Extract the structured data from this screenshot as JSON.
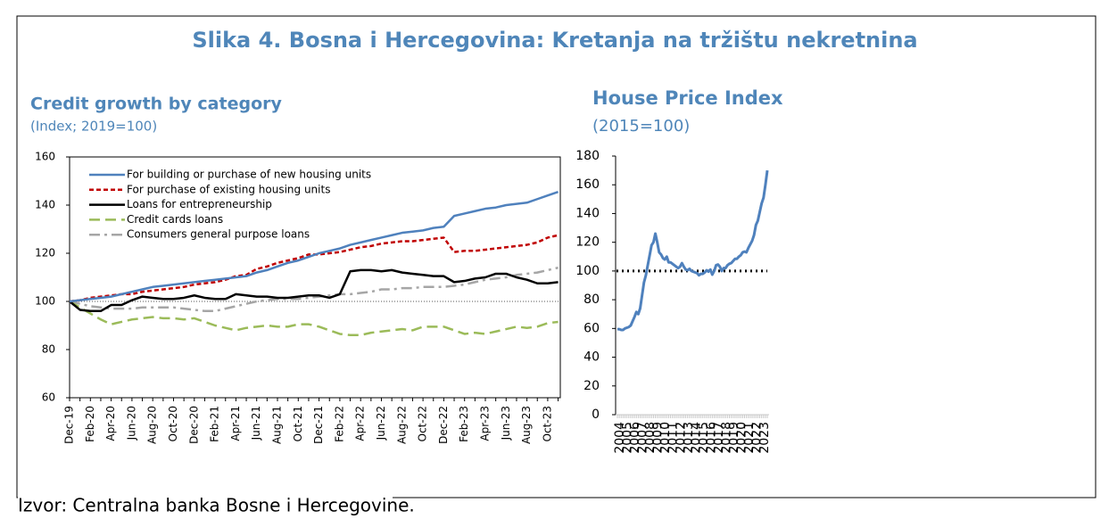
{
  "title": "Slika 4. Bosna i Hercegovina: Kretanja na tržištu nekretnina",
  "source": "Izvor: Centralna banka Bosne i Hercegovine.",
  "chart_data": [
    {
      "type": "line",
      "title": "Credit growth by category",
      "subtitle": "(Index; 2019=100)",
      "categories": [
        "Dec-19",
        null,
        "Feb-20",
        null,
        "Apr-20",
        null,
        "Jun-20",
        null,
        "Aug-20",
        null,
        "Oct-20",
        null,
        "Dec-20",
        null,
        "Feb-21",
        null,
        "Apr-21",
        null,
        "Jun-21",
        null,
        "Aug-21",
        null,
        "Oct-21",
        null,
        "Dec-21",
        null,
        "Feb-22",
        null,
        "Apr-22",
        null,
        "Jun-22",
        null,
        "Aug-22",
        null,
        "Oct-22",
        null,
        "Dec-22",
        null,
        "Feb-23",
        null,
        "Apr-23",
        null,
        "Jun-23",
        null,
        "Aug-23",
        null,
        "Oct-23",
        null
      ],
      "series": [
        {
          "name": "For building or purchase of new housing units",
          "color": "#4f81bd",
          "dash": "solid",
          "values": [
            100,
            100.5,
            101,
            101.5,
            102,
            103,
            104,
            105,
            106,
            106.5,
            107,
            107.5,
            108,
            108.5,
            109,
            109.5,
            110,
            110.5,
            112,
            113,
            114.5,
            116,
            117,
            118.5,
            120,
            121,
            122,
            123.5,
            124.5,
            125.5,
            126.5,
            127.5,
            128.5,
            129,
            129.5,
            130.5,
            131,
            135.5,
            136.5,
            137.5,
            138.5,
            139,
            140,
            140.5,
            141,
            142.5,
            144,
            145.5
          ]
        },
        {
          "name": "For purchase of existing housing units",
          "color": "#c00000",
          "dash": "dashed",
          "values": [
            100,
            100.5,
            101.5,
            102,
            102.5,
            103,
            103,
            104,
            104.5,
            105,
            105.5,
            106,
            107,
            107.5,
            108,
            109,
            110.5,
            111,
            113.5,
            114.5,
            116,
            117,
            118,
            119.5,
            119.5,
            120,
            120.5,
            121.5,
            122.5,
            123,
            124,
            124.5,
            125,
            125,
            125.5,
            126,
            126.5,
            120.5,
            121,
            121,
            121.5,
            122,
            122.5,
            123,
            123.5,
            124.5,
            126.5,
            127.5
          ]
        },
        {
          "name": "Loans for entrepreneurship",
          "color": "#000000",
          "dash": "solid",
          "values": [
            100,
            96.5,
            96,
            96,
            98.5,
            98.5,
            100.5,
            102,
            101.5,
            101,
            101,
            101.5,
            102.5,
            101.5,
            101,
            101,
            103,
            102.5,
            102,
            102,
            101.5,
            101.5,
            102,
            102.5,
            102.5,
            101.5,
            103,
            112.5,
            113,
            113,
            112.5,
            113,
            112,
            111.5,
            111,
            110.5,
            110.5,
            108,
            108.5,
            109.5,
            110,
            111.5,
            111.5,
            110,
            109,
            107.5,
            107.5,
            108
          ]
        },
        {
          "name": "Credit cards loans",
          "color": "#9bbb59",
          "dash": "longdash",
          "values": [
            100,
            97.5,
            95,
            92.5,
            90.5,
            91.5,
            92.5,
            93,
            93.5,
            93,
            93,
            92.5,
            93,
            91.5,
            90,
            89,
            88,
            89,
            89.5,
            90,
            89.5,
            89.5,
            90.5,
            90.5,
            89.5,
            88,
            86.5,
            86,
            86,
            87,
            87.5,
            88,
            88.5,
            88,
            89.5,
            89.5,
            89.5,
            88,
            86.5,
            87,
            86.5,
            87.5,
            88.5,
            89.5,
            89,
            89.5,
            91,
            91.5
          ]
        },
        {
          "name": "Consumers general purpose loans",
          "color": "#a6a6a6",
          "dash": "dashdot",
          "values": [
            100,
            99,
            98,
            97.5,
            97,
            97,
            97,
            97.5,
            97.5,
            97.5,
            97.5,
            97,
            96.5,
            96,
            96,
            97,
            98,
            99,
            100,
            100.5,
            101,
            101,
            101,
            101.5,
            102,
            102.5,
            103,
            103,
            103.5,
            104,
            105,
            105,
            105.5,
            105.5,
            106,
            106,
            106,
            106.5,
            107,
            108,
            109,
            109.5,
            110,
            111,
            111.5,
            112,
            113,
            114
          ]
        }
      ],
      "ylim": [
        60,
        160
      ],
      "yticks": [
        60,
        80,
        100,
        120,
        140,
        160
      ],
      "reference_line": 100,
      "legend": "upper left"
    },
    {
      "type": "line",
      "title": "House Price Index",
      "subtitle": "(2015=100)",
      "categories": [
        "2004",
        null,
        null,
        null,
        "2005",
        null,
        null,
        null,
        "2006",
        null,
        null,
        null,
        "2007",
        null,
        null,
        null,
        "2008",
        null,
        null,
        null,
        "2009",
        null,
        null,
        null,
        "2010",
        null,
        null,
        null,
        "2011",
        null,
        null,
        null,
        "2012",
        null,
        null,
        null,
        "2013",
        null,
        null,
        null,
        "2014",
        null,
        null,
        null,
        "2015",
        null,
        null,
        null,
        "2016",
        null,
        null,
        null,
        "2017",
        null,
        null,
        null,
        "2018",
        null,
        null,
        null,
        "2019",
        null,
        null,
        null,
        "2020",
        null,
        null,
        null,
        "2021",
        null,
        null,
        null,
        "2022",
        null,
        null,
        null,
        "2023",
        null,
        null,
        null
      ],
      "color": "#4f81bd",
      "values": [
        59.5,
        59.5,
        59,
        59,
        60,
        60.5,
        61,
        62,
        65,
        68,
        71.5,
        70,
        74,
        83,
        92,
        97,
        104,
        111,
        118,
        120,
        126,
        120,
        113,
        111.5,
        109,
        108,
        110,
        106,
        106,
        105,
        104,
        103,
        102,
        103,
        105.5,
        103,
        101,
        100.5,
        101.5,
        100,
        99.5,
        99,
        98.5,
        97,
        98,
        98,
        99,
        100.5,
        99.5,
        101,
        97.5,
        100,
        104,
        104.5,
        103,
        100,
        102,
        102,
        104,
        105,
        105.5,
        107,
        108.5,
        108.5,
        110,
        111,
        113,
        113.5,
        113,
        116,
        118.5,
        121,
        125,
        132,
        135,
        141,
        147,
        151,
        160,
        170
      ],
      "ylim": [
        0,
        180
      ],
      "yticks": [
        0,
        20,
        40,
        60,
        80,
        100,
        120,
        140,
        160,
        180
      ],
      "reference_line": 100
    }
  ]
}
